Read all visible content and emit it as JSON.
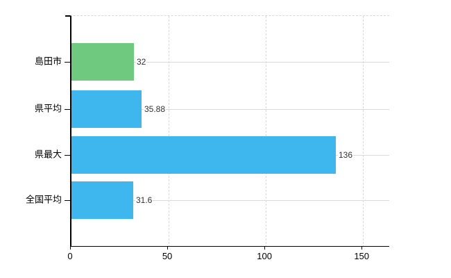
{
  "chart_data": {
    "type": "bar",
    "orientation": "horizontal",
    "title": "",
    "categories": [
      "島田市",
      "県平均",
      "県最大",
      "全国平均"
    ],
    "values": [
      32,
      35.88,
      136,
      31.6
    ],
    "value_labels": [
      "32",
      "35.88",
      "136",
      "31.6"
    ],
    "series": [
      {
        "name": "",
        "values": [
          32,
          35.88,
          136,
          31.6
        ]
      }
    ],
    "bar_colors": [
      "#6fca80",
      "#3db7ee",
      "#3db7ee",
      "#3db7ee"
    ],
    "x_ticks": [
      0,
      50,
      100,
      150
    ],
    "x_tick_labels": [
      "0",
      "50",
      "100",
      "150"
    ],
    "xlim": [
      0,
      163.5
    ],
    "xlabel": "",
    "ylabel": "",
    "grid": true,
    "legend": "none",
    "colors": {
      "highlight_bar": "#6fca80",
      "default_bar": "#3db7ee",
      "horizontal_gridline": "#d7ddd4",
      "dashed_gridline": "#d9d9d9",
      "axis_line": "#000000",
      "value_label_text": "#333333",
      "background": "#ffffff"
    }
  }
}
